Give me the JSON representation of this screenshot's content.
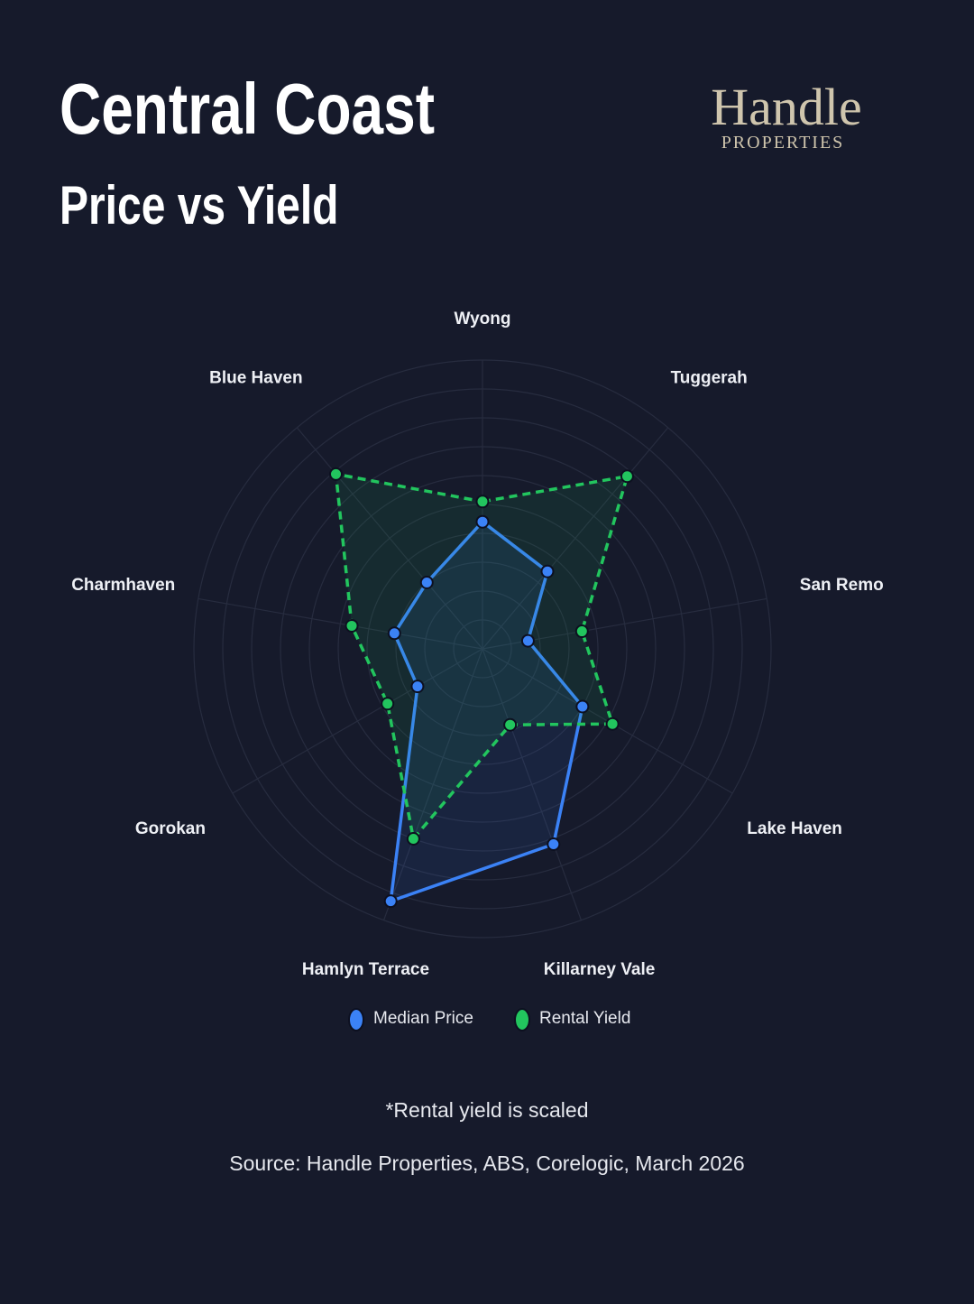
{
  "brand": {
    "name": "Handle",
    "tagline": "PROPERTIES"
  },
  "chart_data": {
    "type": "radar",
    "title": "Central Coast",
    "subtitle": "Price vs Yield",
    "categories": [
      "Wyong",
      "Tuggerah",
      "San Remo",
      "Lake Haven",
      "Killarney Vale",
      "Hamlyn Terrace",
      "Gorokan",
      "Charmhaven",
      "Blue Haven"
    ],
    "series": [
      {
        "name": "Median Price",
        "color": "#3b82f6",
        "line": "solid",
        "values": [
          4.4,
          3.5,
          1.6,
          4.0,
          7.2,
          9.3,
          2.6,
          3.1,
          3.0
        ]
      },
      {
        "name": "Rental Yield",
        "color": "#22c55e",
        "line": "dashed",
        "values": [
          5.1,
          7.8,
          3.5,
          5.2,
          2.8,
          7.0,
          3.8,
          4.6,
          7.9
        ]
      }
    ],
    "rlim": [
      0,
      10
    ],
    "rticks": [
      1,
      2,
      3,
      4,
      5,
      6,
      7,
      8,
      9,
      10
    ],
    "grid": true,
    "footnote": "*Rental yield is scaled",
    "source": "Source: Handle Properties, ABS, Corelogic, March 2026"
  }
}
